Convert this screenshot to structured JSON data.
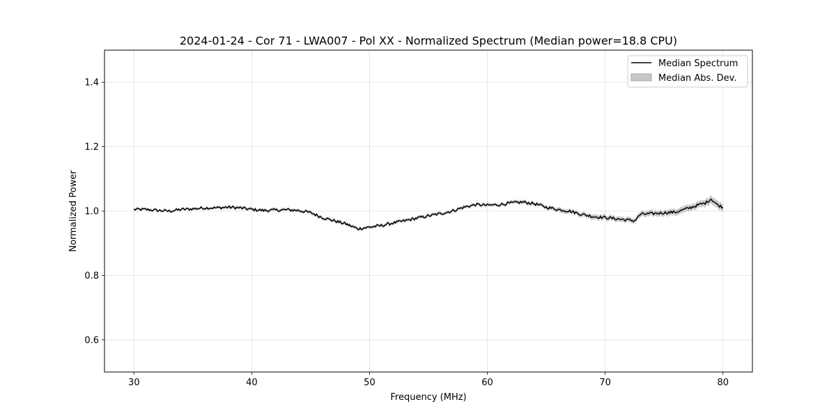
{
  "chart_data": {
    "type": "line",
    "title": "2024-01-24 - Cor 71 - LWA007 - Pol XX - Normalized Spectrum (Median power=18.8 CPU)",
    "xlabel": "Frequency (MHz)",
    "ylabel": "Normalized Power",
    "xlim": [
      27.5,
      82.5
    ],
    "ylim": [
      0.5,
      1.5
    ],
    "xticks": [
      30,
      40,
      50,
      60,
      70,
      80
    ],
    "yticks": [
      0.6,
      0.8,
      1.0,
      1.2,
      1.4
    ],
    "xtick_labels": [
      "30",
      "40",
      "50",
      "60",
      "70",
      "80"
    ],
    "ytick_labels": [
      "0.6",
      "0.8",
      "1.0",
      "1.2",
      "1.4"
    ],
    "grid": true,
    "legend_position": "top-right",
    "legend": [
      "Median Spectrum",
      "Median Abs. Dev."
    ],
    "colors": {
      "line": "#000000",
      "band": "#b0b0b0",
      "grid": "#e0e0e0"
    },
    "series": [
      {
        "name": "Median Spectrum",
        "x": [
          30,
          31,
          32,
          33,
          34,
          35,
          36,
          37,
          38,
          39,
          40,
          41,
          42,
          43,
          44,
          45,
          46,
          47,
          48,
          49,
          50,
          51,
          52,
          53,
          54,
          55,
          56,
          57,
          58,
          59,
          60,
          61,
          62,
          63,
          64,
          65,
          66,
          67,
          68,
          69,
          70,
          71,
          72,
          72.5,
          73,
          74,
          75,
          76,
          77,
          78,
          78.5,
          79,
          79.5,
          80
        ],
        "values": [
          1.005,
          1.005,
          1.002,
          1.0,
          1.005,
          1.007,
          1.01,
          1.01,
          1.012,
          1.01,
          1.005,
          1.002,
          1.003,
          1.004,
          1.002,
          0.995,
          0.98,
          0.97,
          0.96,
          0.945,
          0.95,
          0.955,
          0.963,
          0.97,
          0.978,
          0.985,
          0.992,
          1.0,
          1.012,
          1.02,
          1.018,
          1.02,
          1.025,
          1.028,
          1.023,
          1.012,
          1.005,
          1.0,
          0.99,
          0.983,
          0.98,
          0.976,
          0.972,
          0.97,
          0.99,
          0.992,
          0.995,
          0.997,
          1.008,
          1.02,
          1.025,
          1.038,
          1.02,
          1.012
        ],
        "mad": [
          0.004,
          0.004,
          0.004,
          0.004,
          0.004,
          0.004,
          0.004,
          0.004,
          0.005,
          0.005,
          0.005,
          0.005,
          0.005,
          0.005,
          0.005,
          0.005,
          0.005,
          0.005,
          0.005,
          0.005,
          0.005,
          0.005,
          0.005,
          0.005,
          0.005,
          0.005,
          0.005,
          0.005,
          0.005,
          0.005,
          0.005,
          0.005,
          0.006,
          0.006,
          0.006,
          0.006,
          0.007,
          0.007,
          0.007,
          0.008,
          0.008,
          0.008,
          0.008,
          0.008,
          0.009,
          0.009,
          0.009,
          0.01,
          0.01,
          0.01,
          0.011,
          0.012,
          0.012,
          0.012
        ]
      }
    ]
  }
}
